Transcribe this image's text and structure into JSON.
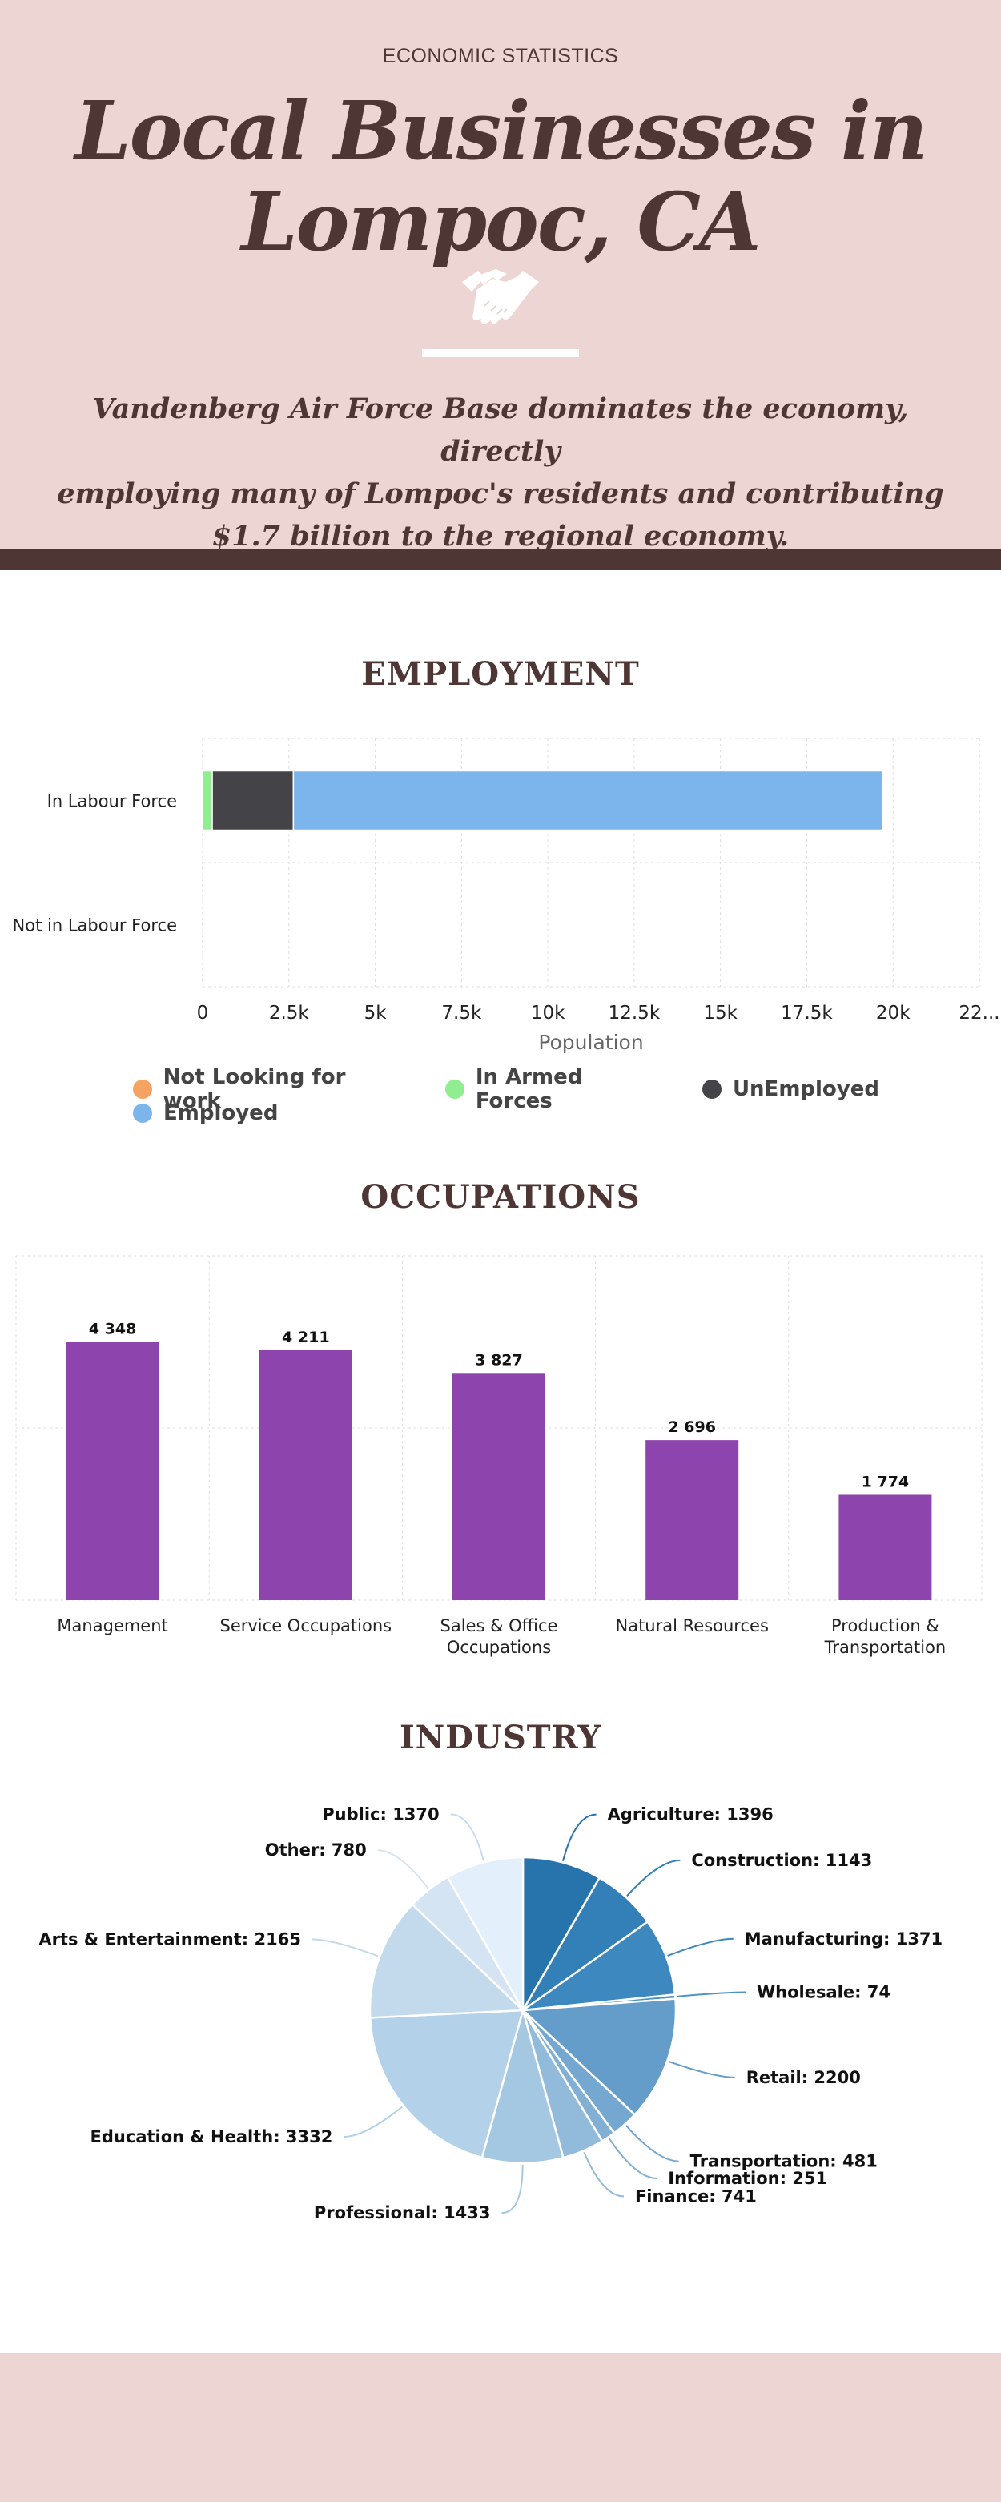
{
  "header": {
    "eyebrow": "ECONOMIC STATISTICS",
    "title_line1": "Local Businesses in",
    "title_line2": "Lompoc, CA",
    "subtitle_line1": "Vandenberg Air Force Base dominates the economy, directly",
    "subtitle_line2": "employing many of Lompoc's residents and contributing",
    "subtitle_line3": "$1.7 billion to the regional economy.",
    "icon": "handshake-icon"
  },
  "colors": {
    "hero_bg": "#ecd5d2",
    "brand_dark": "#4e3634",
    "occupation_bar": "#8e44ad"
  },
  "sections": {
    "employment_title": "EMPLOYMENT",
    "occupations_title": "OCCUPATIONS",
    "industry_title": "INDUSTRY"
  },
  "chart_data": [
    {
      "type": "bar",
      "orientation": "horizontal",
      "stacked": true,
      "categories": [
        "In Labour Force",
        "Not in Labour Force"
      ],
      "xlabel": "Population",
      "xlim": [
        0,
        22500
      ],
      "x_ticks": [
        "0",
        "2.5k",
        "5k",
        "7.5k",
        "10k",
        "12.5k",
        "15k",
        "17.5k",
        "20k",
        "22..."
      ],
      "grid": true,
      "legend_position": "bottom",
      "series": [
        {
          "name": "Not Looking for work",
          "color": "#f4a460",
          "values": [
            0,
            0
          ]
        },
        {
          "name": "In Armed Forces",
          "color": "#90ee90",
          "values": [
            280,
            0
          ]
        },
        {
          "name": "UnEmployed",
          "color": "#434348",
          "values": [
            2350,
            0
          ]
        },
        {
          "name": "Employed",
          "color": "#7cb5ec",
          "values": [
            17060,
            0
          ]
        }
      ]
    },
    {
      "type": "bar",
      "categories": [
        "Management",
        "Service Occupations",
        "Sales & Office Occupations",
        "Natural Resources",
        "Production & Transportation"
      ],
      "category_lines": [
        [
          "Management"
        ],
        [
          "Service Occupations"
        ],
        [
          "Sales & Office",
          "Occupations"
        ],
        [
          "Natural Resources"
        ],
        [
          "Production &",
          "Transportation"
        ]
      ],
      "values": [
        4348,
        4211,
        3827,
        2696,
        1774
      ],
      "value_labels": [
        "4 348",
        "4 211",
        "3 827",
        "2 696",
        "1 774"
      ],
      "ylim": [
        0,
        5800
      ],
      "grid": true,
      "color": "#8e44ad"
    },
    {
      "type": "pie",
      "slices": [
        {
          "label": "Agriculture",
          "value": 1396,
          "color": "#2774ad",
          "display": "Agriculture: 1396"
        },
        {
          "label": "Construction",
          "value": 1143,
          "color": "#337fb7",
          "display": "Construction: 1143"
        },
        {
          "label": "Manufacturing",
          "value": 1371,
          "color": "#3d88bf",
          "display": "Manufacturing: 1371"
        },
        {
          "label": "Wholesale",
          "value": 74,
          "color": "#4d93c6",
          "display": "Wholesale: 74"
        },
        {
          "label": "Retail",
          "value": 2200,
          "color": "#649dc9",
          "display": "Retail: 2200"
        },
        {
          "label": "Transportation",
          "value": 481,
          "color": "#75a8d0",
          "display": "Transportation: 481"
        },
        {
          "label": "Information",
          "value": 251,
          "color": "#82b0d5",
          "display": "Information: 251"
        },
        {
          "label": "Finance",
          "value": 741,
          "color": "#92bbdb",
          "display": "Finance: 741"
        },
        {
          "label": "Professional",
          "value": 1433,
          "color": "#a5c8e2",
          "display": "Professional: 1433"
        },
        {
          "label": "Education & Health",
          "value": 3332,
          "color": "#b3d1e8",
          "display": "Education & Health: 3332"
        },
        {
          "label": "Arts & Entertainment",
          "value": 2165,
          "color": "#c3daed",
          "display": "Arts & Entertainment: 2165"
        },
        {
          "label": "Other",
          "value": 780,
          "color": "#d4e4f2",
          "display": "Other: 780"
        },
        {
          "label": "Public",
          "value": 1370,
          "color": "#e3effa",
          "display": "Public: 1370"
        }
      ]
    }
  ]
}
